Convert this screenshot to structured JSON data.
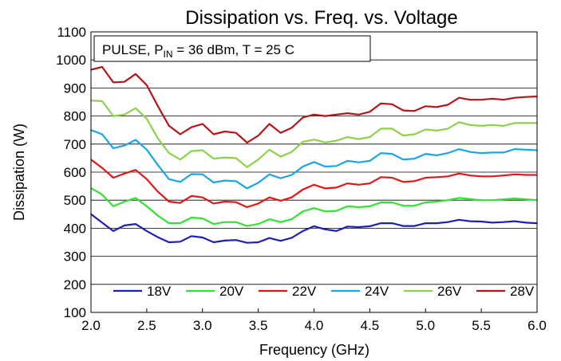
{
  "chart_data": {
    "type": "line",
    "title": "Dissipation vs. Freq. vs. Voltage",
    "xlabel": "Frequency (GHz)",
    "ylabel": "Dissipation (W)",
    "xlim": [
      2.0,
      6.0
    ],
    "ylim": [
      100,
      1100
    ],
    "xticks": [
      "2.0",
      "2.5",
      "3.0",
      "3.5",
      "4.0",
      "4.5",
      "5.0",
      "5.5",
      "6.0"
    ],
    "yticks": [
      "100",
      "200",
      "300",
      "400",
      "500",
      "600",
      "700",
      "800",
      "900",
      "1000",
      "1100"
    ],
    "annotation": {
      "prefix": "PULSE, P",
      "subscript": "IN",
      "suffix": " = 36 dBm, T = 25 C"
    },
    "grid": true,
    "legend_position": "bottom",
    "x": [
      2.0,
      2.1,
      2.2,
      2.3,
      2.4,
      2.5,
      2.6,
      2.7,
      2.8,
      2.9,
      3.0,
      3.1,
      3.2,
      3.3,
      3.4,
      3.5,
      3.6,
      3.7,
      3.8,
      3.9,
      4.0,
      4.1,
      4.2,
      4.3,
      4.4,
      4.5,
      4.6,
      4.7,
      4.8,
      4.9,
      5.0,
      5.1,
      5.2,
      5.3,
      5.4,
      5.5,
      5.6,
      5.7,
      5.8,
      5.9,
      6.0
    ],
    "series": [
      {
        "name": "18V",
        "color": "#1f1fb8",
        "values": [
          450,
          420,
          390,
          410,
          415,
          390,
          368,
          350,
          352,
          372,
          367,
          350,
          356,
          358,
          348,
          350,
          365,
          355,
          366,
          390,
          407,
          396,
          390,
          406,
          404,
          407,
          418,
          418,
          408,
          408,
          418,
          418,
          422,
          430,
          425,
          424,
          420,
          422,
          425,
          420,
          418
        ]
      },
      {
        "name": "20V",
        "color": "#33e033",
        "values": [
          543,
          520,
          478,
          495,
          508,
          478,
          445,
          418,
          418,
          438,
          435,
          415,
          422,
          422,
          408,
          415,
          432,
          422,
          432,
          460,
          472,
          460,
          462,
          478,
          475,
          478,
          492,
          492,
          480,
          480,
          492,
          495,
          500,
          508,
          504,
          500,
          500,
          503,
          506,
          503,
          500
        ]
      },
      {
        "name": "22V",
        "color": "#e01818",
        "values": [
          645,
          615,
          580,
          595,
          608,
          575,
          530,
          495,
          490,
          515,
          510,
          488,
          495,
          493,
          475,
          488,
          510,
          498,
          510,
          538,
          555,
          542,
          545,
          560,
          555,
          560,
          582,
          580,
          565,
          568,
          580,
          582,
          585,
          595,
          588,
          585,
          585,
          588,
          592,
          590,
          590
        ]
      },
      {
        "name": "24V",
        "color": "#1aa6e6",
        "values": [
          750,
          735,
          685,
          695,
          715,
          680,
          625,
          575,
          565,
          593,
          592,
          563,
          570,
          568,
          542,
          562,
          592,
          578,
          590,
          620,
          636,
          620,
          622,
          640,
          635,
          640,
          668,
          665,
          645,
          648,
          665,
          660,
          668,
          682,
          672,
          668,
          670,
          670,
          682,
          680,
          678
        ]
      },
      {
        "name": "26V",
        "color": "#8cd24a",
        "values": [
          855,
          853,
          800,
          805,
          828,
          790,
          720,
          668,
          645,
          675,
          678,
          648,
          652,
          650,
          618,
          645,
          680,
          655,
          672,
          708,
          716,
          706,
          712,
          725,
          718,
          725,
          755,
          755,
          730,
          735,
          752,
          748,
          755,
          778,
          768,
          765,
          768,
          765,
          775,
          775,
          775
        ]
      },
      {
        "name": "28V",
        "color": "#b81418",
        "values": [
          965,
          975,
          920,
          922,
          950,
          910,
          835,
          765,
          735,
          760,
          772,
          735,
          745,
          740,
          705,
          730,
          772,
          740,
          758,
          795,
          805,
          800,
          805,
          810,
          805,
          815,
          845,
          842,
          820,
          818,
          835,
          832,
          840,
          865,
          858,
          858,
          862,
          858,
          865,
          868,
          870
        ]
      }
    ]
  }
}
